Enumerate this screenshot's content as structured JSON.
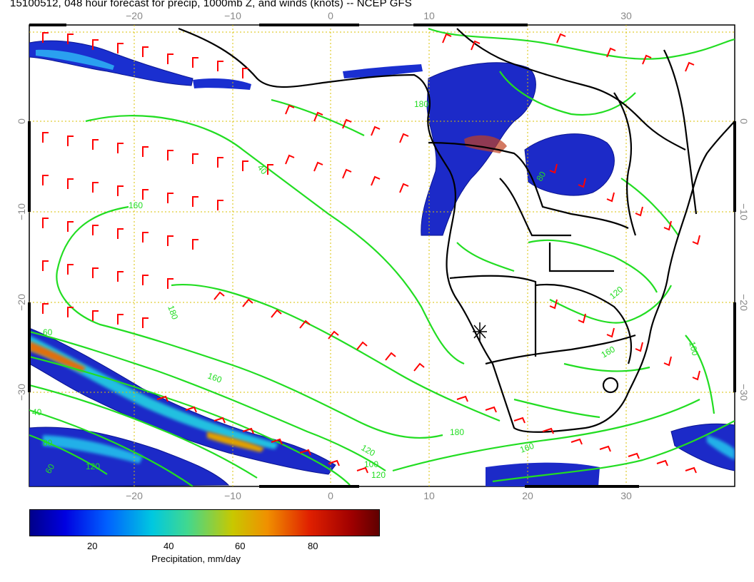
{
  "title": "15100512, 048 hour forecast for precip, 1000mb Z, and winds (knots) -- NCEP GFS",
  "map": {
    "lon_ticks": [
      "−20",
      "−10",
      "0",
      "10",
      "20",
      "30"
    ],
    "lat_ticks": [
      "0",
      "−10",
      "−20",
      "−30"
    ],
    "lat_ticks_right": [
      "0",
      "−10",
      "−20",
      "−30"
    ],
    "contour_labels": [
      "40",
      "160",
      "180",
      "120",
      "160",
      "80",
      "60",
      "40",
      "120",
      "100",
      "120",
      "160",
      "180",
      "100",
      "120",
      "160",
      "180",
      "60",
      "80"
    ],
    "colors": {
      "coast": "#000000",
      "contour": "#22dd22",
      "wind_barb": "#ff0000",
      "grid": "#d8c000"
    },
    "marker_icon": "asterisk-marker"
  },
  "colorbar": {
    "ticks": [
      "20",
      "40",
      "60",
      "80"
    ],
    "title": "Precipitation, mm/day"
  }
}
